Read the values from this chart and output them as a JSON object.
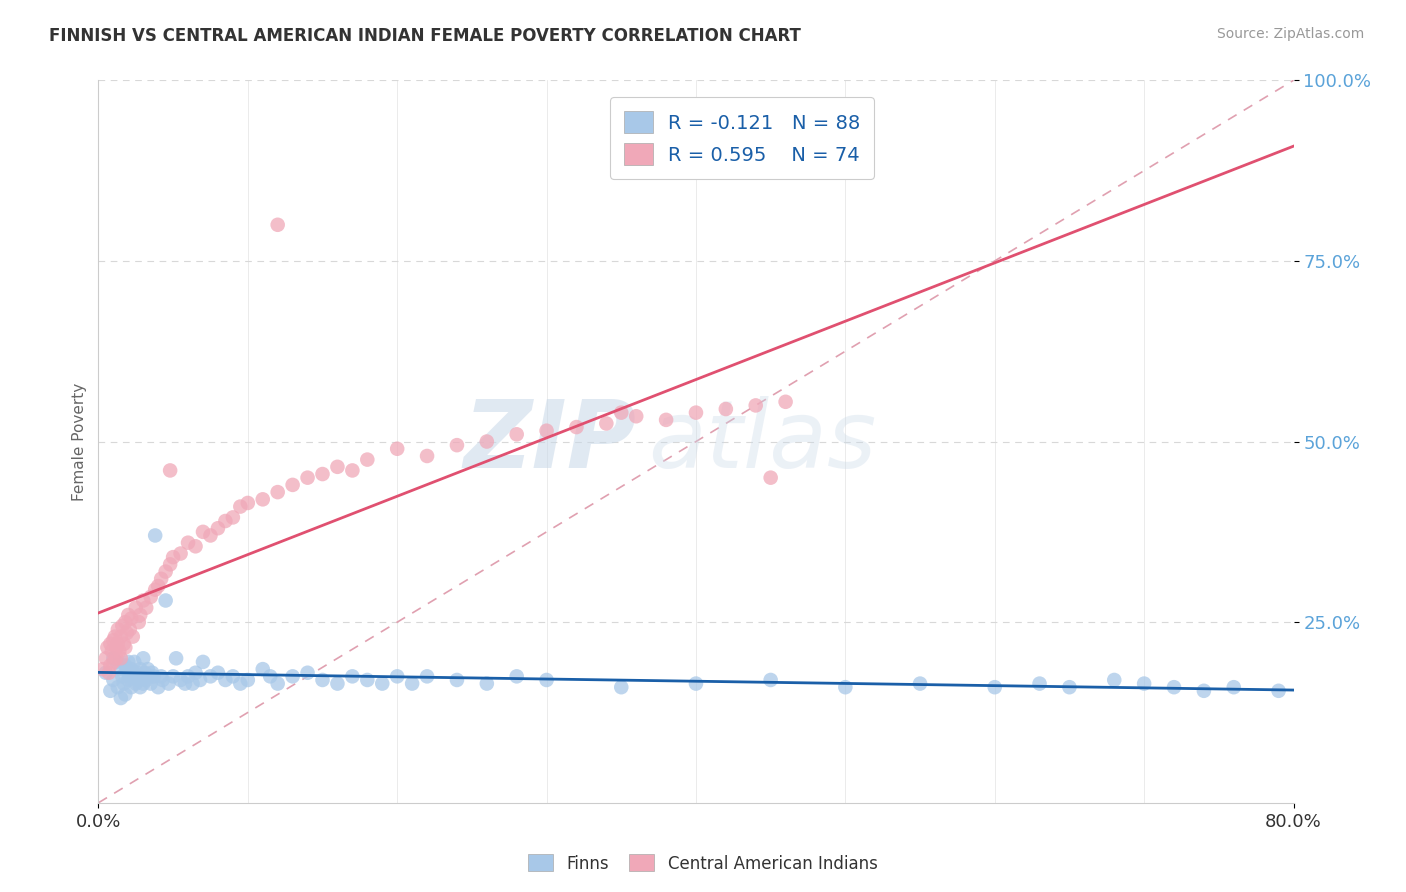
{
  "title": "FINNISH VS CENTRAL AMERICAN INDIAN FEMALE POVERTY CORRELATION CHART",
  "source": "Source: ZipAtlas.com",
  "ylabel": "Female Poverty",
  "xlim": [
    0.0,
    0.8
  ],
  "ylim": [
    0.0,
    1.0
  ],
  "color_finns": "#a8c8e8",
  "color_central": "#f0a8b8",
  "color_line_finns": "#1a5fa8",
  "color_line_central": "#e05070",
  "color_diagonal": "#e0a0b0",
  "watermark_zip": "ZIP",
  "watermark_atlas": "atlas",
  "finns_x": [
    0.005,
    0.008,
    0.01,
    0.01,
    0.012,
    0.013,
    0.015,
    0.015,
    0.016,
    0.017,
    0.018,
    0.018,
    0.019,
    0.02,
    0.02,
    0.021,
    0.022,
    0.022,
    0.023,
    0.024,
    0.025,
    0.025,
    0.026,
    0.027,
    0.028,
    0.028,
    0.029,
    0.03,
    0.03,
    0.031,
    0.032,
    0.033,
    0.034,
    0.035,
    0.036,
    0.037,
    0.038,
    0.04,
    0.042,
    0.043,
    0.045,
    0.047,
    0.05,
    0.052,
    0.055,
    0.058,
    0.06,
    0.063,
    0.065,
    0.068,
    0.07,
    0.075,
    0.08,
    0.085,
    0.09,
    0.095,
    0.1,
    0.11,
    0.115,
    0.12,
    0.13,
    0.14,
    0.15,
    0.16,
    0.17,
    0.18,
    0.19,
    0.2,
    0.21,
    0.22,
    0.24,
    0.26,
    0.28,
    0.3,
    0.35,
    0.4,
    0.45,
    0.5,
    0.55,
    0.6,
    0.63,
    0.65,
    0.68,
    0.7,
    0.72,
    0.74,
    0.76,
    0.79
  ],
  "finns_y": [
    0.18,
    0.155,
    0.2,
    0.17,
    0.195,
    0.16,
    0.185,
    0.145,
    0.175,
    0.165,
    0.19,
    0.15,
    0.185,
    0.195,
    0.17,
    0.175,
    0.185,
    0.16,
    0.18,
    0.195,
    0.175,
    0.165,
    0.18,
    0.17,
    0.185,
    0.16,
    0.175,
    0.2,
    0.165,
    0.18,
    0.17,
    0.185,
    0.175,
    0.165,
    0.18,
    0.175,
    0.37,
    0.16,
    0.175,
    0.17,
    0.28,
    0.165,
    0.175,
    0.2,
    0.17,
    0.165,
    0.175,
    0.165,
    0.18,
    0.17,
    0.195,
    0.175,
    0.18,
    0.17,
    0.175,
    0.165,
    0.17,
    0.185,
    0.175,
    0.165,
    0.175,
    0.18,
    0.17,
    0.165,
    0.175,
    0.17,
    0.165,
    0.175,
    0.165,
    0.175,
    0.17,
    0.165,
    0.175,
    0.17,
    0.16,
    0.165,
    0.17,
    0.16,
    0.165,
    0.16,
    0.165,
    0.16,
    0.17,
    0.165,
    0.16,
    0.155,
    0.16,
    0.155
  ],
  "central_x": [
    0.003,
    0.005,
    0.006,
    0.007,
    0.008,
    0.008,
    0.009,
    0.01,
    0.01,
    0.011,
    0.012,
    0.012,
    0.013,
    0.013,
    0.014,
    0.015,
    0.015,
    0.016,
    0.017,
    0.018,
    0.018,
    0.019,
    0.02,
    0.021,
    0.022,
    0.023,
    0.025,
    0.027,
    0.028,
    0.03,
    0.032,
    0.035,
    0.038,
    0.04,
    0.042,
    0.045,
    0.048,
    0.05,
    0.055,
    0.06,
    0.065,
    0.07,
    0.075,
    0.08,
    0.085,
    0.09,
    0.095,
    0.1,
    0.11,
    0.12,
    0.13,
    0.14,
    0.15,
    0.16,
    0.17,
    0.18,
    0.2,
    0.22,
    0.24,
    0.26,
    0.28,
    0.3,
    0.32,
    0.34,
    0.36,
    0.38,
    0.4,
    0.42,
    0.44,
    0.46,
    0.048,
    0.35,
    0.45,
    0.12
  ],
  "central_y": [
    0.185,
    0.2,
    0.215,
    0.18,
    0.22,
    0.19,
    0.21,
    0.225,
    0.195,
    0.23,
    0.215,
    0.2,
    0.24,
    0.22,
    0.21,
    0.23,
    0.2,
    0.245,
    0.22,
    0.25,
    0.215,
    0.235,
    0.26,
    0.24,
    0.255,
    0.23,
    0.27,
    0.25,
    0.26,
    0.28,
    0.27,
    0.285,
    0.295,
    0.3,
    0.31,
    0.32,
    0.33,
    0.34,
    0.345,
    0.36,
    0.355,
    0.375,
    0.37,
    0.38,
    0.39,
    0.395,
    0.41,
    0.415,
    0.42,
    0.43,
    0.44,
    0.45,
    0.455,
    0.465,
    0.46,
    0.475,
    0.49,
    0.48,
    0.495,
    0.5,
    0.51,
    0.515,
    0.52,
    0.525,
    0.535,
    0.53,
    0.54,
    0.545,
    0.55,
    0.555,
    0.46,
    0.54,
    0.45,
    0.8
  ]
}
